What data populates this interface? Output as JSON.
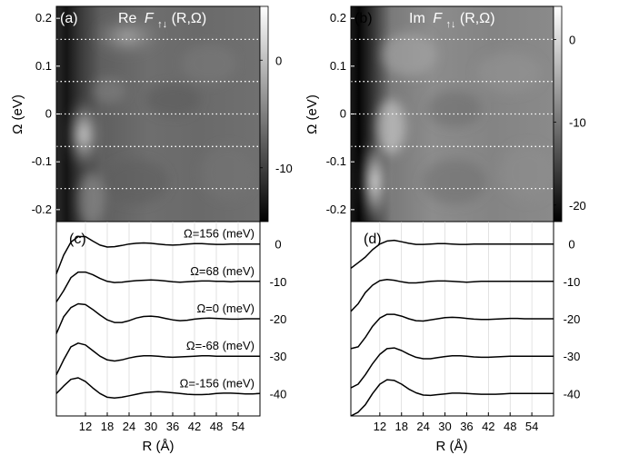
{
  "chart_data": [
    {
      "panel": "(a)",
      "type": "heatmap",
      "title_prefix": "Re",
      "title_symbol": "F",
      "title_subscript": "↑↓",
      "title_args": "(R,Ω)",
      "ylabel": "Ω (eV)",
      "ylim": [
        -0.225,
        0.225
      ],
      "yticks": [
        "0.2",
        "0.1",
        "0",
        "-0.1",
        "-0.2"
      ],
      "ytick_values": [
        0.2,
        0.1,
        0,
        -0.1,
        -0.2
      ],
      "colorbar_ticks": [
        "0",
        "-10"
      ],
      "colorbar_values": [
        0,
        -10
      ],
      "colorbar_range": [
        -15,
        5
      ],
      "dotted_lines": [
        0.156,
        0.068,
        0,
        -0.068,
        -0.156
      ]
    },
    {
      "panel": "(b)",
      "type": "heatmap",
      "title_prefix": "Im",
      "title_symbol": "F",
      "title_subscript": "↑↓",
      "title_args": "(R,Ω)",
      "ylabel": "Ω (eV)",
      "ylim": [
        -0.225,
        0.225
      ],
      "yticks": [
        "0.2",
        "0.1",
        "0",
        "-0.1",
        "-0.2"
      ],
      "ytick_values": [
        0.2,
        0.1,
        0,
        -0.1,
        -0.2
      ],
      "colorbar_ticks": [
        "0",
        "-10",
        "-20"
      ],
      "colorbar_values": [
        0,
        -10,
        -20
      ],
      "colorbar_range": [
        -22,
        4
      ],
      "dotted_lines": [
        0.156,
        0.068,
        0,
        -0.068,
        -0.156
      ]
    },
    {
      "panel": "(c)",
      "type": "line",
      "xlabel": "R (Å)",
      "xticks": [
        "12",
        "18",
        "24",
        "30",
        "36",
        "42",
        "48",
        "54"
      ],
      "xtick_values": [
        12,
        18,
        24,
        30,
        36,
        42,
        48,
        54
      ],
      "xlim": [
        4,
        60
      ],
      "yticks": [
        "0",
        "-10",
        "-20",
        "-30",
        "-40"
      ],
      "ytick_values": [
        0,
        -10,
        -20,
        -30,
        -40
      ],
      "ylim": [
        -46,
        6
      ],
      "series_labels": [
        "Ω=156 (meV)",
        "Ω=68 (meV)",
        "Ω=0 (meV)",
        "Ω=-68 (meV)",
        "Ω=-156 (meV)"
      ],
      "x": [
        4,
        6,
        8,
        10,
        12,
        14,
        16,
        18,
        20,
        22,
        24,
        26,
        28,
        30,
        32,
        34,
        36,
        38,
        40,
        42,
        44,
        46,
        48,
        50,
        52,
        54,
        56,
        58,
        60
      ],
      "series": [
        {
          "values": [
            -8.0,
            -3.0,
            0.5,
            2.0,
            2.0,
            0.8,
            -0.3,
            -0.8,
            -0.7,
            -0.4,
            0.0,
            0.2,
            0.3,
            0.2,
            0.0,
            -0.2,
            -0.3,
            -0.2,
            0.0,
            0.1,
            0.1,
            0.0,
            -0.1,
            -0.1,
            0.0,
            0.0,
            0.0,
            0.0,
            0.0
          ]
        },
        {
          "values": [
            -15.5,
            -12.5,
            -9.0,
            -7.5,
            -7.5,
            -8.2,
            -9.2,
            -10.0,
            -10.3,
            -10.2,
            -10.0,
            -9.8,
            -9.7,
            -9.6,
            -9.7,
            -9.9,
            -10.1,
            -10.2,
            -10.1,
            -10.0,
            -9.9,
            -9.9,
            -10.0,
            -10.0,
            -10.1,
            -10.0,
            -10.0,
            -10.0,
            -10.0
          ]
        },
        {
          "values": [
            -24.0,
            -19.5,
            -17.0,
            -16.0,
            -16.2,
            -17.5,
            -19.0,
            -20.3,
            -21.0,
            -21.0,
            -20.5,
            -19.8,
            -19.4,
            -19.3,
            -19.5,
            -19.9,
            -20.3,
            -20.5,
            -20.4,
            -20.1,
            -19.9,
            -19.8,
            -19.9,
            -20.0,
            -20.1,
            -20.1,
            -20.0,
            -20.0,
            -20.0
          ]
        },
        {
          "values": [
            -35.0,
            -31.0,
            -27.5,
            -26.5,
            -27.0,
            -28.5,
            -30.0,
            -31.0,
            -31.3,
            -31.0,
            -30.5,
            -30.1,
            -29.9,
            -29.9,
            -30.0,
            -30.2,
            -30.3,
            -30.2,
            -30.1,
            -30.0,
            -29.9,
            -29.9,
            -30.0,
            -30.0,
            -30.0,
            -30.0,
            -30.0,
            -30.0,
            -30.0
          ]
        },
        {
          "values": [
            -40.0,
            -38.0,
            -36.2,
            -35.8,
            -36.8,
            -38.5,
            -40.0,
            -41.0,
            -41.2,
            -41.0,
            -40.6,
            -40.2,
            -39.8,
            -39.6,
            -39.5,
            -39.6,
            -39.8,
            -40.0,
            -40.2,
            -40.3,
            -40.3,
            -40.2,
            -40.0,
            -39.9,
            -39.9,
            -40.0,
            -40.1,
            -40.1,
            -40.0
          ]
        }
      ]
    },
    {
      "panel": "(d)",
      "type": "line",
      "xlabel": "R (Å)",
      "xticks": [
        "12",
        "18",
        "24",
        "30",
        "36",
        "42",
        "48",
        "54"
      ],
      "xtick_values": [
        12,
        18,
        24,
        30,
        36,
        42,
        48,
        54
      ],
      "xlim": [
        4,
        60
      ],
      "yticks": [
        "0",
        "-10",
        "-20",
        "-30",
        "-40"
      ],
      "ytick_values": [
        0,
        -10,
        -20,
        -30,
        -40
      ],
      "ylim": [
        -46,
        6
      ],
      "x": [
        4,
        6,
        8,
        10,
        12,
        14,
        16,
        18,
        20,
        22,
        24,
        26,
        28,
        30,
        32,
        34,
        36,
        38,
        40,
        42,
        44,
        46,
        48,
        50,
        52,
        54,
        56,
        58,
        60
      ],
      "series": [
        {
          "values": [
            -6.5,
            -5.0,
            -3.5,
            -1.5,
            0.0,
            0.8,
            1.0,
            0.6,
            0.2,
            -0.1,
            -0.1,
            0.0,
            0.1,
            0.1,
            0.0,
            -0.1,
            -0.1,
            0.0,
            0.0,
            0.0,
            0.0,
            0.0,
            0.0,
            0.0,
            0.0,
            0.0,
            0.0,
            0.0,
            0.0
          ]
        },
        {
          "values": [
            -18.0,
            -16.0,
            -13.0,
            -11.0,
            -9.8,
            -9.5,
            -9.7,
            -10.1,
            -10.4,
            -10.4,
            -10.2,
            -10.0,
            -9.9,
            -9.9,
            -10.0,
            -10.1,
            -10.2,
            -10.1,
            -10.0,
            -10.0,
            -10.0,
            -10.0,
            -10.0,
            -10.0,
            -10.0,
            -10.0,
            -10.0,
            -10.0,
            -10.0
          ]
        },
        {
          "values": [
            -28.0,
            -27.5,
            -25.0,
            -22.0,
            -19.8,
            -18.8,
            -18.8,
            -19.3,
            -20.0,
            -20.5,
            -20.6,
            -20.3,
            -20.0,
            -19.7,
            -19.6,
            -19.7,
            -19.9,
            -20.1,
            -20.2,
            -20.2,
            -20.1,
            -20.0,
            -19.9,
            -19.9,
            -20.0,
            -20.0,
            -20.0,
            -20.0,
            -20.0
          ]
        },
        {
          "values": [
            -38.5,
            -37.5,
            -35.0,
            -32.0,
            -29.5,
            -28.0,
            -27.8,
            -28.5,
            -29.5,
            -30.3,
            -30.7,
            -30.7,
            -30.4,
            -30.1,
            -29.9,
            -29.9,
            -30.0,
            -30.2,
            -30.3,
            -30.3,
            -30.2,
            -30.1,
            -30.0,
            -30.0,
            -30.0,
            -30.0,
            -30.0,
            -30.0,
            -30.0
          ]
        },
        {
          "values": [
            -46.0,
            -45.0,
            -43.0,
            -40.0,
            -37.5,
            -36.3,
            -36.5,
            -37.5,
            -38.8,
            -39.8,
            -40.4,
            -40.5,
            -40.3,
            -40.1,
            -39.9,
            -39.9,
            -40.0,
            -40.1,
            -40.2,
            -40.2,
            -40.2,
            -40.1,
            -40.0,
            -40.0,
            -40.0,
            -40.0,
            -40.0,
            -40.0,
            -40.0
          ]
        }
      ]
    }
  ]
}
